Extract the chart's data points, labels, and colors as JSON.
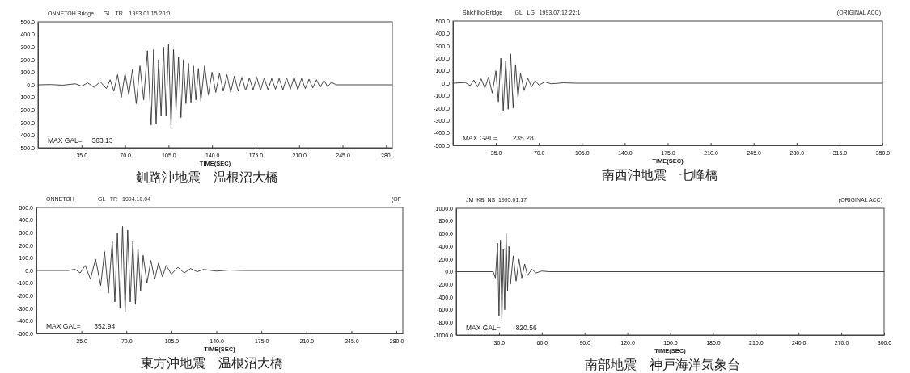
{
  "chart_data": [
    {
      "type": "line",
      "title": "ONNETOH Bridge      GL   TR    1993.01.15 20:0",
      "subtitle": "釧路沖地震　温根沼大橋",
      "xlabel": "TIME(SEC)",
      "annotations": [
        "MAX GAL=     363.13"
      ],
      "x": [
        0,
        10,
        20,
        30,
        35,
        40,
        45,
        50,
        55,
        58,
        61,
        64,
        67,
        70,
        73,
        76,
        79,
        82,
        85,
        88,
        91,
        93,
        95,
        97,
        99,
        101,
        103,
        105,
        107,
        109,
        111,
        113,
        115,
        117,
        119,
        121,
        123,
        125,
        127,
        129,
        131,
        134,
        137,
        140,
        143,
        146,
        149,
        152,
        155,
        158,
        161,
        164,
        167,
        170,
        173,
        176,
        179,
        182,
        185,
        188,
        191,
        194,
        197,
        200,
        203,
        206,
        209,
        212,
        215,
        218,
        221,
        224,
        227,
        230,
        233,
        236,
        240,
        285
      ],
      "series": [
        {
          "color": "#333333",
          "values": [
            0,
            2,
            -3,
            8,
            -10,
            15,
            -20,
            25,
            -30,
            40,
            -50,
            80,
            -100,
            90,
            -80,
            120,
            -150,
            150,
            -120,
            270,
            -320,
            280,
            -310,
            200,
            -250,
            300,
            -250,
            320,
            -340,
            280,
            -200,
            220,
            -260,
            200,
            -150,
            170,
            -140,
            150,
            -120,
            130,
            -130,
            150,
            -80,
            100,
            -60,
            90,
            -50,
            80,
            -60,
            70,
            -50,
            60,
            -45,
            55,
            -40,
            60,
            -45,
            55,
            -40,
            50,
            -35,
            50,
            -40,
            55,
            -35,
            60,
            -40,
            50,
            -30,
            45,
            -25,
            40,
            -20,
            35,
            -15,
            20,
            0,
            0
          ]
        }
      ],
      "xlim": [
        0,
        285
      ],
      "xticks": [
        {
          "value": 35,
          "label": "35.0"
        },
        {
          "value": 70,
          "label": "70.0"
        },
        {
          "value": 105,
          "label": "105.0"
        },
        {
          "value": 140,
          "label": "140.0"
        },
        {
          "value": 175,
          "label": "175.0"
        },
        {
          "value": 210,
          "label": "210.0"
        },
        {
          "value": 245,
          "label": "245.0"
        },
        {
          "value": 280,
          "label": "280."
        }
      ],
      "ylim": [
        -500,
        500
      ],
      "yticks": [
        {
          "value": 500,
          "label": "500.0"
        },
        {
          "value": 400,
          "label": "400.0"
        },
        {
          "value": 300,
          "label": "300.0"
        },
        {
          "value": 200,
          "label": "200.0"
        },
        {
          "value": 100,
          "label": "100.0"
        },
        {
          "value": 0,
          "label": "0.0"
        },
        {
          "value": -100,
          "label": "-100.0"
        },
        {
          "value": -200,
          "label": "-200.0"
        },
        {
          "value": -300,
          "label": "-300.0"
        },
        {
          "value": -400,
          "label": "-400.0"
        },
        {
          "value": -500,
          "label": "-500.0"
        }
      ]
    },
    {
      "type": "line",
      "title": "Shichiho Bridge        GL   LG   1993.07.12 22:1",
      "subtitle": "南西沖地震　七峰橋",
      "xlabel": "TIME(SEC)",
      "annotations": [
        "MAX GAL=        235.28",
        "(ORIGINAL ACC)"
      ],
      "x": [
        0,
        10,
        14,
        17,
        20,
        23,
        26,
        29,
        32,
        35,
        37,
        39,
        41,
        43,
        45,
        47,
        49,
        51,
        53,
        55,
        58,
        61,
        64,
        67,
        70,
        75,
        80,
        90,
        100,
        120,
        350
      ],
      "series": [
        {
          "color": "#333333",
          "values": [
            0,
            5,
            -20,
            25,
            -30,
            35,
            -40,
            50,
            -80,
            100,
            -150,
            200,
            -220,
            180,
            -210,
            235,
            -200,
            150,
            -120,
            80,
            -60,
            40,
            -30,
            20,
            -15,
            10,
            -5,
            3,
            0,
            0,
            0
          ]
        }
      ],
      "xlim": [
        0,
        350
      ],
      "xticks": [
        {
          "value": 35,
          "label": "35.0"
        },
        {
          "value": 70,
          "label": "70.0"
        },
        {
          "value": 105,
          "label": "105.0"
        },
        {
          "value": 140,
          "label": "140.0"
        },
        {
          "value": 175,
          "label": "175.0"
        },
        {
          "value": 210,
          "label": "210.0"
        },
        {
          "value": 245,
          "label": "245.0"
        },
        {
          "value": 280,
          "label": "280.0"
        },
        {
          "value": 315,
          "label": "315.0"
        },
        {
          "value": 350,
          "label": "350.0"
        }
      ],
      "ylim": [
        -500,
        500
      ],
      "yticks": [
        {
          "value": 500,
          "label": "500.0"
        },
        {
          "value": 400,
          "label": "400.0"
        },
        {
          "value": 300,
          "label": "300.0"
        },
        {
          "value": 200,
          "label": "200.0"
        },
        {
          "value": 100,
          "label": "100.0"
        },
        {
          "value": 0,
          "label": "0.0"
        },
        {
          "value": -100,
          "label": "-100.0"
        },
        {
          "value": -200,
          "label": "-200.0"
        },
        {
          "value": -300,
          "label": "-300.0"
        },
        {
          "value": -400,
          "label": "-400.0"
        },
        {
          "value": -500,
          "label": "-500.0"
        }
      ]
    },
    {
      "type": "line",
      "title": "ONNETOH               GL   TR   1994.10.04",
      "subtitle": "東方沖地震　温根沼大橋",
      "xlabel": "TIME(SEC)",
      "annotations": [
        "MAX GAL=       352.94",
        "(OF"
      ],
      "x": [
        0,
        25,
        30,
        34,
        38,
        42,
        46,
        50,
        53,
        56,
        59,
        61,
        63,
        65,
        67,
        69,
        71,
        73,
        75,
        77,
        79,
        81,
        83,
        86,
        89,
        92,
        95,
        98,
        101,
        105,
        110,
        115,
        120,
        125,
        130,
        140,
        150,
        160,
        285
      ],
      "series": [
        {
          "color": "#333333",
          "values": [
            0,
            0,
            10,
            -20,
            40,
            -70,
            90,
            -120,
            150,
            -180,
            230,
            -250,
            300,
            -300,
            350,
            -330,
            320,
            -250,
            230,
            -270,
            180,
            -160,
            120,
            -100,
            80,
            -70,
            60,
            -50,
            40,
            -30,
            25,
            -20,
            15,
            -10,
            8,
            -5,
            3,
            0,
            0
          ]
        }
      ],
      "xlim": [
        0,
        285
      ],
      "xticks": [
        {
          "value": 35,
          "label": "35.0"
        },
        {
          "value": 70,
          "label": "70.0"
        },
        {
          "value": 105,
          "label": "105.0"
        },
        {
          "value": 140,
          "label": "140.0"
        },
        {
          "value": 175,
          "label": "175.0"
        },
        {
          "value": 210,
          "label": "210.0"
        },
        {
          "value": 245,
          "label": "245.0"
        },
        {
          "value": 280,
          "label": "280.0"
        }
      ],
      "ylim": [
        -500,
        500
      ],
      "yticks": [
        {
          "value": 500,
          "label": "500.0"
        },
        {
          "value": 400,
          "label": "400.0"
        },
        {
          "value": 300,
          "label": "300.0"
        },
        {
          "value": 200,
          "label": "200.0"
        },
        {
          "value": 100,
          "label": "100.0"
        },
        {
          "value": 0,
          "label": "0.0"
        },
        {
          "value": -100,
          "label": "-100.0"
        },
        {
          "value": -200,
          "label": "-200.0"
        },
        {
          "value": -300,
          "label": "-300.0"
        },
        {
          "value": -400,
          "label": "-400.0"
        },
        {
          "value": -500,
          "label": "-500.0"
        }
      ]
    },
    {
      "type": "line",
      "title": "JM_KB_NS  1995.01.17",
      "subtitle": "南部地震　神戸海洋気象台",
      "xlabel": "TIME(SEC)",
      "annotations": [
        "MAX GAL=        820.56",
        "(ORIGINAL ACC)"
      ],
      "x": [
        0,
        26,
        27.5,
        29,
        30,
        31,
        32,
        33,
        34,
        35,
        36,
        37,
        38,
        40,
        42,
        44,
        46,
        48,
        50,
        53,
        56,
        60,
        65,
        300
      ],
      "series": [
        {
          "color": "#333333",
          "values": [
            0,
            0,
            -100,
            450,
            -700,
            500,
            -780,
            350,
            -600,
            600,
            -300,
            400,
            -200,
            250,
            -150,
            200,
            -100,
            120,
            -60,
            40,
            -20,
            10,
            0,
            0
          ]
        }
      ],
      "xlim": [
        0,
        300
      ],
      "xticks": [
        {
          "value": 30,
          "label": "30.0"
        },
        {
          "value": 60,
          "label": "60.0"
        },
        {
          "value": 90,
          "label": "90.0"
        },
        {
          "value": 120,
          "label": "120.0"
        },
        {
          "value": 150,
          "label": "150.0"
        },
        {
          "value": 180,
          "label": "180.0"
        },
        {
          "value": 210,
          "label": "210.0"
        },
        {
          "value": 240,
          "label": "240.0"
        },
        {
          "value": 270,
          "label": "270.0"
        },
        {
          "value": 300,
          "label": "300.0"
        }
      ],
      "ylim": [
        -1000,
        1000
      ],
      "yticks": [
        {
          "value": 1000,
          "label": "1000.0"
        },
        {
          "value": 800,
          "label": "800.0"
        },
        {
          "value": 600,
          "label": "600.0"
        },
        {
          "value": 400,
          "label": "400.0"
        },
        {
          "value": 200,
          "label": "200.0"
        },
        {
          "value": 0,
          "label": "0.0"
        },
        {
          "value": -200,
          "label": "-200.0"
        },
        {
          "value": -400,
          "label": "-400.0"
        },
        {
          "value": -600,
          "label": "-600.0"
        },
        {
          "value": -800,
          "label": "-800.0"
        },
        {
          "value": -1000,
          "label": "-1000.0"
        }
      ]
    }
  ]
}
